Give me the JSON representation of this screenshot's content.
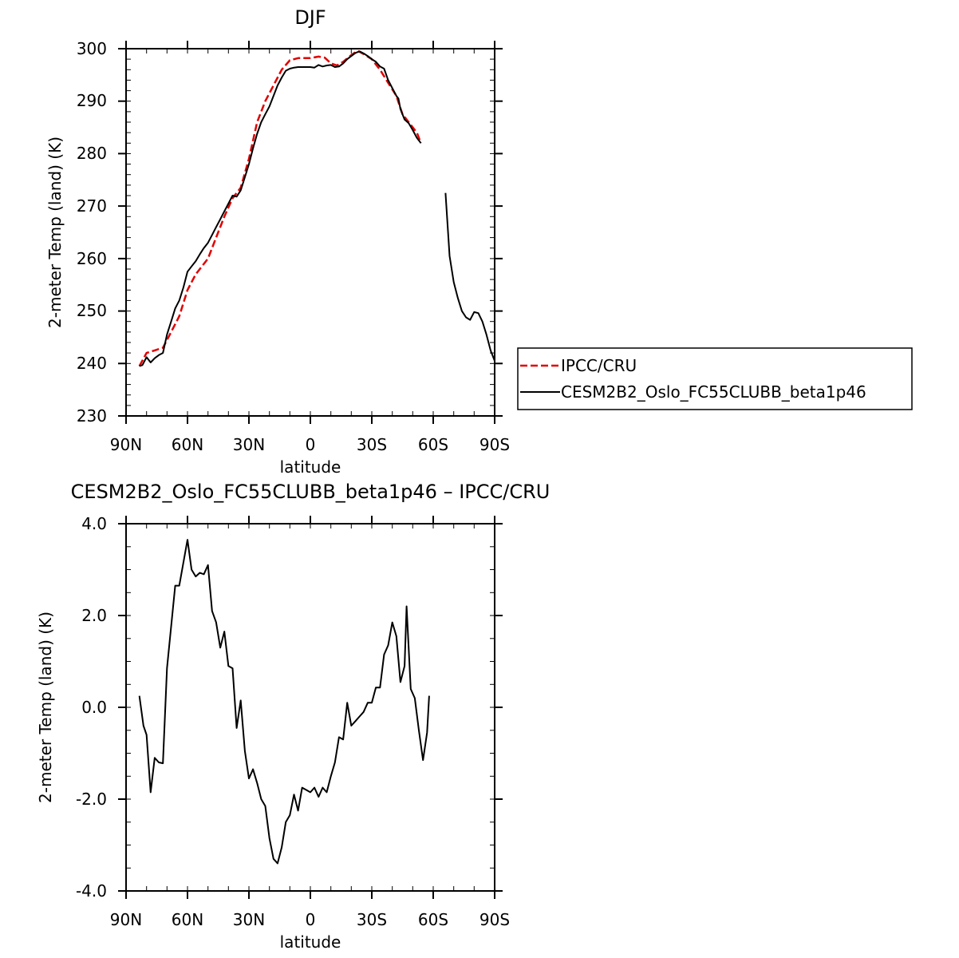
{
  "charts": [
    {
      "title": "DJF",
      "xlabel": "latitude",
      "ylabel": "2-meter Temp (land) (K)",
      "xticks": [
        "90N",
        "60N",
        "30N",
        "0",
        "30S",
        "60S",
        "90S"
      ],
      "yticks": [
        "230",
        "240",
        "250",
        "260",
        "270",
        "280",
        "290",
        "300"
      ]
    },
    {
      "title": "CESM2B2_Oslo_FC55CLUBB_beta1p46 – IPCC/CRU",
      "xlabel": "latitude",
      "ylabel": "2-meter Temp (land) (K)",
      "xticks": [
        "90N",
        "60N",
        "30N",
        "0",
        "30S",
        "60S",
        "90S"
      ],
      "yticks": [
        "-4.0",
        "-2.0",
        "0.0",
        "2.0",
        "4.0"
      ]
    }
  ],
  "legend": {
    "items": [
      {
        "label": "IPCC/CRU",
        "color": "#e00000",
        "dash": "dashed"
      },
      {
        "label": "CESM2B2_Oslo_FC55CLUBB_beta1p46",
        "color": "#000000",
        "dash": "solid"
      }
    ]
  },
  "chart_data": [
    {
      "type": "line",
      "title": "DJF",
      "xlabel": "latitude",
      "ylabel": "2-meter Temp (land) (K)",
      "xlim": [
        90,
        -90
      ],
      "ylim": [
        230,
        300
      ],
      "x_tick_values": [
        90,
        60,
        30,
        0,
        -30,
        -60,
        -90
      ],
      "y_tick_values": [
        230,
        240,
        250,
        260,
        270,
        280,
        290,
        300
      ],
      "legend_position": "right",
      "series": [
        {
          "name": "IPCC/CRU",
          "color": "#e00000",
          "dash": "dashed",
          "segments": [
            [
              [
                83.5,
                239.5
              ],
              [
                80,
                242
              ],
              [
                76,
                242.5
              ],
              [
                72,
                243
              ],
              [
                68,
                246
              ],
              [
                64,
                249
              ],
              [
                60,
                254
              ],
              [
                56,
                257
              ],
              [
                50,
                260
              ],
              [
                46,
                264
              ],
              [
                42,
                268
              ],
              [
                38,
                271.5
              ],
              [
                34,
                273.5
              ],
              [
                30,
                279
              ],
              [
                26,
                286
              ],
              [
                22,
                290
              ],
              [
                18,
                293
              ],
              [
                14,
                296
              ],
              [
                10,
                297.8
              ],
              [
                6,
                298.2
              ],
              [
                0,
                298.2
              ],
              [
                -4,
                298.5
              ],
              [
                -7,
                298.3
              ],
              [
                -10,
                297.2
              ],
              [
                -13,
                296.8
              ],
              [
                -16,
                297.5
              ],
              [
                -20,
                298.8
              ],
              [
                -23,
                299.6
              ],
              [
                -26,
                299
              ],
              [
                -30,
                298
              ],
              [
                -34,
                296
              ],
              [
                -38,
                293.5
              ],
              [
                -42,
                291
              ],
              [
                -45,
                287.5
              ],
              [
                -49,
                285.5
              ],
              [
                -52,
                284
              ],
              [
                -54,
                282
              ]
            ]
          ]
        },
        {
          "name": "CESM2B2_Oslo_FC55CLUBB_beta1p46",
          "color": "#000000",
          "dash": "solid",
          "segments": [
            [
              [
                83.5,
                239.5
              ],
              [
                82,
                239.7
              ],
              [
                80,
                241.2
              ],
              [
                78,
                240.2
              ],
              [
                76,
                241
              ],
              [
                74,
                241.6
              ],
              [
                72,
                242
              ],
              [
                70,
                245.5
              ],
              [
                68,
                248
              ],
              [
                66,
                250.5
              ],
              [
                64,
                252
              ],
              [
                62,
                254.5
              ],
              [
                60,
                257.5
              ],
              [
                58,
                258.5
              ],
              [
                56,
                259.5
              ],
              [
                54,
                260.8
              ],
              [
                52,
                262
              ],
              [
                50,
                263
              ],
              [
                48,
                264.5
              ],
              [
                46,
                266
              ],
              [
                44,
                267.5
              ],
              [
                42,
                269
              ],
              [
                40,
                270.5
              ],
              [
                38,
                272
              ],
              [
                36,
                271.8
              ],
              [
                34,
                273
              ],
              [
                32,
                275.5
              ],
              [
                30,
                278
              ],
              [
                28,
                281
              ],
              [
                26,
                283.8
              ],
              [
                24,
                286
              ],
              [
                22,
                287.5
              ],
              [
                20,
                289
              ],
              [
                18,
                291
              ],
              [
                16,
                293
              ],
              [
                14,
                294.5
              ],
              [
                12,
                295.8
              ],
              [
                10,
                296.2
              ],
              [
                8,
                296.4
              ],
              [
                6,
                296.5
              ],
              [
                4,
                296.5
              ],
              [
                2,
                296.5
              ],
              [
                0,
                296.5
              ],
              [
                -2,
                296.4
              ],
              [
                -4,
                296.9
              ],
              [
                -6,
                296.6
              ],
              [
                -8,
                296.8
              ],
              [
                -10,
                296.9
              ],
              [
                -12,
                296.5
              ],
              [
                -14,
                296.6
              ],
              [
                -16,
                297.2
              ],
              [
                -18,
                298
              ],
              [
                -20,
                298.6
              ],
              [
                -22,
                299.2
              ],
              [
                -24,
                299.5
              ],
              [
                -26,
                299.1
              ],
              [
                -28,
                298.6
              ],
              [
                -30,
                298
              ],
              [
                -32,
                297.5
              ],
              [
                -34,
                296.6
              ],
              [
                -36,
                296.2
              ],
              [
                -38,
                294
              ],
              [
                -40,
                292.5
              ],
              [
                -42,
                291
              ],
              [
                -43,
                290.5
              ],
              [
                -44,
                288.5
              ],
              [
                -46,
                286.5
              ],
              [
                -48,
                285.8
              ],
              [
                -50,
                284.5
              ],
              [
                -52,
                283
              ],
              [
                -54,
                282
              ]
            ],
            [
              [
                -66,
                272.5
              ],
              [
                -68,
                260.5
              ],
              [
                -70,
                255.5
              ],
              [
                -72,
                252.5
              ],
              [
                -74,
                250
              ],
              [
                -76,
                248.8
              ],
              [
                -78,
                248.3
              ],
              [
                -80,
                249.8
              ],
              [
                -82,
                249.6
              ],
              [
                -84,
                248
              ],
              [
                -86,
                245.5
              ],
              [
                -88,
                242.5
              ],
              [
                -90,
                240.5
              ]
            ]
          ]
        }
      ]
    },
    {
      "type": "line",
      "title": "CESM2B2_Oslo_FC55CLUBB_beta1p46 – IPCC/CRU",
      "xlabel": "latitude",
      "ylabel": "2-meter Temp (land) (K)",
      "xlim": [
        90,
        -90
      ],
      "ylim": [
        -4,
        4
      ],
      "x_tick_values": [
        90,
        60,
        30,
        0,
        -30,
        -60,
        -90
      ],
      "y_tick_values": [
        -4,
        -2,
        0,
        2,
        4
      ],
      "series": [
        {
          "color": "#000000",
          "dash": "solid",
          "segments": [
            [
              [
                83.5,
                0.25
              ],
              [
                81.5,
                -0.4
              ],
              [
                80,
                -0.6
              ],
              [
                78,
                -1.85
              ],
              [
                76,
                -1.1
              ],
              [
                74,
                -1.2
              ],
              [
                72,
                -1.22
              ],
              [
                70,
                0.85
              ],
              [
                66,
                2.65
              ],
              [
                64,
                2.65
              ],
              [
                60,
                3.65
              ],
              [
                58,
                3
              ],
              [
                56,
                2.85
              ],
              [
                54,
                2.93
              ],
              [
                52,
                2.9
              ],
              [
                50,
                3.1
              ],
              [
                48,
                2.1
              ],
              [
                46,
                1.85
              ],
              [
                44,
                1.3
              ],
              [
                42,
                1.65
              ],
              [
                40,
                0.9
              ],
              [
                38,
                0.85
              ],
              [
                36,
                -0.45
              ],
              [
                34,
                0.15
              ],
              [
                32,
                -0.95
              ],
              [
                30,
                -1.55
              ],
              [
                28,
                -1.35
              ],
              [
                26,
                -1.65
              ],
              [
                24,
                -2
              ],
              [
                22,
                -2.15
              ],
              [
                20,
                -2.85
              ],
              [
                18,
                -3.3
              ],
              [
                16,
                -3.4
              ],
              [
                14,
                -3.05
              ],
              [
                12,
                -2.5
              ],
              [
                10,
                -2.35
              ],
              [
                8,
                -1.9
              ],
              [
                6,
                -2.25
              ],
              [
                4,
                -1.75
              ],
              [
                2,
                -1.8
              ],
              [
                0,
                -1.85
              ],
              [
                -2,
                -1.75
              ],
              [
                -4,
                -1.95
              ],
              [
                -6,
                -1.75
              ],
              [
                -8,
                -1.85
              ],
              [
                -10,
                -1.5
              ],
              [
                -12,
                -1.2
              ],
              [
                -14,
                -0.65
              ],
              [
                -16,
                -0.7
              ],
              [
                -18,
                0.1
              ],
              [
                -20,
                -0.4
              ],
              [
                -22,
                -0.3
              ],
              [
                -24,
                -0.2
              ],
              [
                -26,
                -0.1
              ],
              [
                -28,
                0.1
              ],
              [
                -30,
                0.1
              ],
              [
                -32,
                0.43
              ],
              [
                -34,
                0.43
              ],
              [
                -36,
                1.15
              ],
              [
                -38,
                1.35
              ],
              [
                -40,
                1.85
              ],
              [
                -42,
                1.55
              ],
              [
                -44,
                0.55
              ],
              [
                -46,
                0.9
              ],
              [
                -47,
                2.2
              ],
              [
                -49,
                0.4
              ],
              [
                -51,
                0.2
              ],
              [
                -53,
                -0.5
              ],
              [
                -55,
                -1.15
              ],
              [
                -57,
                -0.55
              ],
              [
                -58,
                0.25
              ]
            ]
          ]
        }
      ]
    }
  ]
}
